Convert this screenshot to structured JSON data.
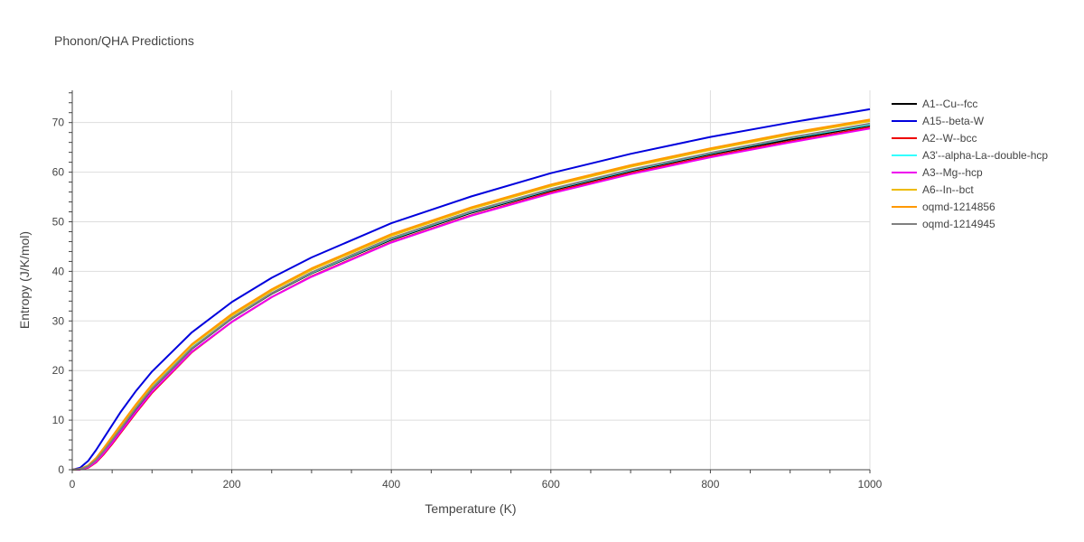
{
  "chart_data": {
    "type": "line",
    "title": "Phonon/QHA Predictions",
    "xlabel": "Temperature (K)",
    "ylabel": "Entropy (J/K/mol)",
    "xlim": [
      0,
      1000
    ],
    "ylim": [
      0,
      76.5
    ],
    "xticks": [
      0,
      200,
      400,
      600,
      800,
      1000
    ],
    "yticks": [
      0,
      10,
      20,
      30,
      40,
      50,
      60,
      70
    ],
    "grid": true,
    "legend_position": "right",
    "x": [
      0,
      10,
      20,
      30,
      40,
      50,
      60,
      80,
      100,
      150,
      200,
      250,
      300,
      400,
      500,
      600,
      700,
      800,
      900,
      1000
    ],
    "series": [
      {
        "name": "A1--Cu--fcc",
        "color": "#000000",
        "values": [
          0,
          0.1,
          0.6,
          1.9,
          3.8,
          5.9,
          8.0,
          12.3,
          16.3,
          24.4,
          30.5,
          35.5,
          39.6,
          46.4,
          51.8,
          56.3,
          60.2,
          63.6,
          66.6,
          69.4
        ]
      },
      {
        "name": "A15--beta-W",
        "color": "#0000dd",
        "values": [
          0,
          0.4,
          1.8,
          4.0,
          6.5,
          9.0,
          11.5,
          15.9,
          19.8,
          27.7,
          33.8,
          38.7,
          42.8,
          49.7,
          55.1,
          59.8,
          63.7,
          67.1,
          70.0,
          72.7
        ]
      },
      {
        "name": "A2--W--bcc",
        "color": "#ee0000",
        "values": [
          0,
          0.05,
          0.4,
          1.5,
          3.2,
          5.2,
          7.3,
          11.5,
          15.5,
          23.7,
          29.8,
          34.8,
          39.0,
          45.9,
          51.3,
          55.9,
          59.8,
          63.2,
          66.2,
          69.0
        ]
      },
      {
        "name": "A3'--alpha-La--double-hcp",
        "color": "#33ffff",
        "values": [
          0,
          0.1,
          0.7,
          2.1,
          4.0,
          6.1,
          8.2,
          12.5,
          16.5,
          24.6,
          30.6,
          35.6,
          39.7,
          46.6,
          52.0,
          56.5,
          60.4,
          63.8,
          66.9,
          69.6
        ]
      },
      {
        "name": "A3--Mg--hcp",
        "color": "#ee00ee",
        "values": [
          0,
          0.05,
          0.5,
          1.6,
          3.4,
          5.4,
          7.5,
          11.7,
          15.7,
          23.8,
          29.8,
          34.8,
          38.9,
          45.8,
          51.2,
          55.7,
          59.6,
          63.0,
          66.0,
          68.8
        ]
      },
      {
        "name": "A6--In--bct",
        "color": "#eebb00",
        "values": [
          0,
          0.15,
          0.8,
          2.3,
          4.3,
          6.5,
          8.7,
          13.0,
          17.0,
          25.1,
          31.1,
          36.1,
          40.3,
          47.2,
          52.6,
          57.2,
          61.1,
          64.5,
          67.6,
          70.3
        ]
      },
      {
        "name": "oqmd-1214856",
        "color": "#ff9900",
        "values": [
          0,
          0.15,
          0.9,
          2.4,
          4.5,
          6.7,
          8.9,
          13.2,
          17.2,
          25.3,
          31.4,
          36.4,
          40.6,
          47.5,
          52.9,
          57.5,
          61.4,
          64.8,
          67.9,
          70.6
        ]
      },
      {
        "name": "oqmd-1214945",
        "color": "#808080",
        "values": [
          0,
          0.1,
          0.7,
          2.0,
          3.9,
          6.0,
          8.1,
          12.4,
          16.4,
          24.5,
          30.6,
          35.6,
          39.8,
          46.7,
          52.1,
          56.6,
          60.5,
          63.9,
          67.0,
          69.8
        ]
      }
    ]
  }
}
